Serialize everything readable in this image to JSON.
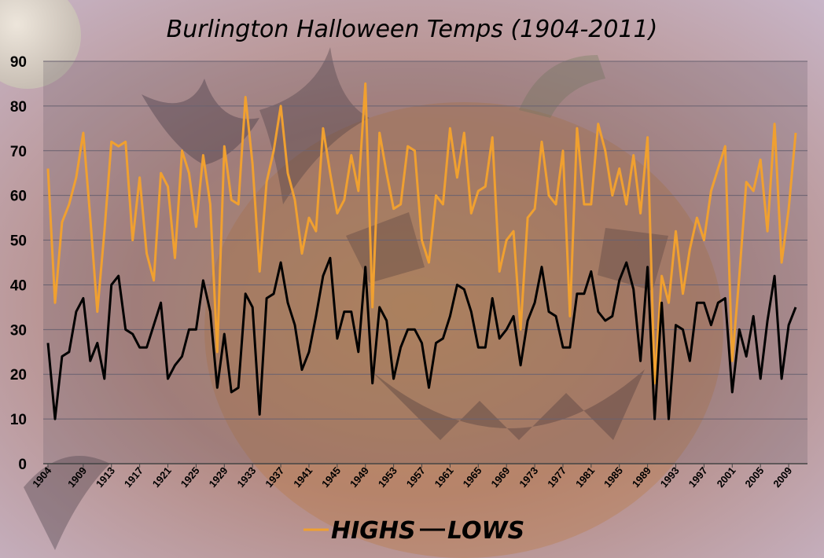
{
  "chart_data": {
    "type": "line",
    "title": "Burlington Halloween Temps (1904-2011)",
    "xlabel": "",
    "ylabel": "",
    "ylim": [
      0,
      90
    ],
    "yticks": [
      0,
      10,
      20,
      30,
      40,
      50,
      60,
      70,
      80,
      90
    ],
    "grid": true,
    "legend_position": "bottom",
    "x_start": 1904,
    "x_end": 2011,
    "xtick_labels": [
      "1904",
      "1909",
      "1913",
      "1917",
      "1921",
      "1925",
      "1929",
      "1933",
      "1937",
      "1941",
      "1945",
      "1949",
      "1953",
      "1957",
      "1961",
      "1965",
      "1969",
      "1973",
      "1977",
      "1981",
      "1985",
      "1989",
      "1993",
      "1997",
      "2001",
      "2005",
      "2009"
    ],
    "series": [
      {
        "name": "HIGHS",
        "color": "#f0a030",
        "values": [
          66,
          36,
          54,
          58,
          64,
          74,
          55,
          34,
          52,
          72,
          71,
          72,
          50,
          64,
          47,
          41,
          65,
          62,
          46,
          70,
          65,
          53,
          69,
          58,
          25,
          71,
          59,
          58,
          82,
          67,
          43,
          63,
          70,
          80,
          65,
          59,
          47,
          55,
          52,
          75,
          65,
          56,
          59,
          69,
          61,
          85,
          35,
          74,
          65,
          57,
          58,
          71,
          70,
          50,
          45,
          60,
          58,
          75,
          64,
          74,
          56,
          61,
          62,
          73,
          43,
          50,
          52,
          30,
          55,
          57,
          72,
          60,
          58,
          70,
          33,
          75,
          58,
          58,
          76,
          70,
          60,
          66,
          58,
          69,
          56,
          73,
          18,
          42,
          36,
          52,
          38,
          48,
          55,
          50,
          61,
          66,
          71,
          23,
          42,
          63,
          61,
          68,
          52,
          76,
          45,
          57,
          74
        ]
      },
      {
        "name": "LOWS",
        "color": "#000000",
        "values": [
          27,
          10,
          24,
          25,
          34,
          37,
          23,
          27,
          19,
          40,
          42,
          30,
          29,
          26,
          26,
          31,
          36,
          19,
          22,
          24,
          30,
          30,
          41,
          34,
          17,
          29,
          16,
          17,
          38,
          35,
          11,
          37,
          38,
          45,
          36,
          31,
          21,
          25,
          33,
          42,
          46,
          28,
          34,
          34,
          25,
          44,
          18,
          35,
          32,
          19,
          26,
          30,
          30,
          27,
          17,
          27,
          28,
          33,
          40,
          39,
          34,
          26,
          26,
          37,
          28,
          30,
          33,
          22,
          32,
          36,
          44,
          34,
          33,
          26,
          26,
          38,
          38,
          43,
          34,
          32,
          33,
          41,
          45,
          39,
          23,
          44,
          10,
          36,
          10,
          31,
          30,
          23,
          36,
          36,
          31,
          36,
          37,
          16,
          30,
          24,
          33,
          19,
          32,
          42,
          19,
          31,
          35
        ]
      }
    ]
  }
}
